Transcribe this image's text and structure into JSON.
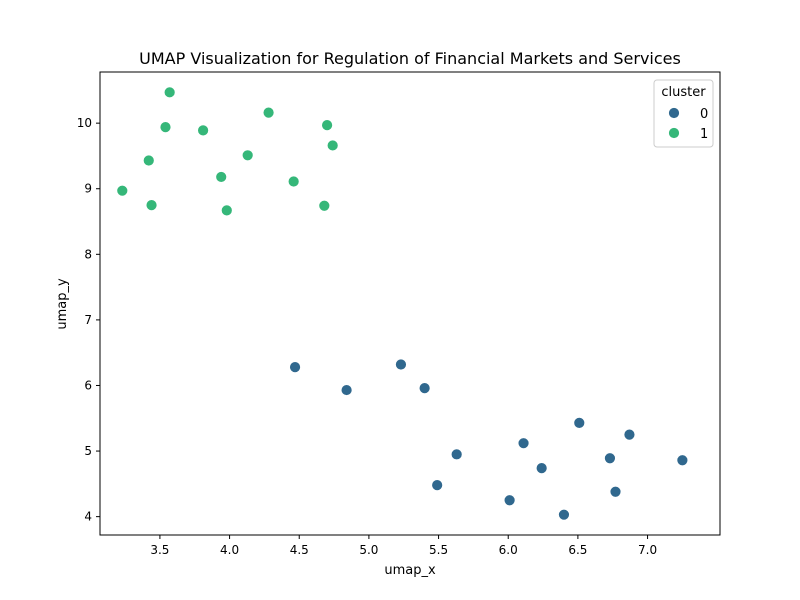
{
  "chart_data": {
    "type": "scatter",
    "title": "UMAP Visualization for Regulation of Financial Markets and Services",
    "xlabel": "umap_x",
    "ylabel": "umap_y",
    "xlim": [
      3.07,
      7.52
    ],
    "ylim": [
      3.72,
      10.78
    ],
    "xticks": [
      3.5,
      4.0,
      4.5,
      5.0,
      5.5,
      6.0,
      6.5,
      7.0
    ],
    "yticks": [
      4,
      5,
      6,
      7,
      8,
      9,
      10
    ],
    "xtick_labels": [
      "3.5",
      "4.0",
      "4.5",
      "5.0",
      "5.5",
      "6.0",
      "6.5",
      "7.0"
    ],
    "ytick_labels": [
      "4",
      "5",
      "6",
      "7",
      "8",
      "9",
      "10"
    ],
    "grid": false,
    "legend": {
      "title": "cluster",
      "placement": "top-right"
    },
    "series": [
      {
        "name": "0",
        "color": "#30688e",
        "points": [
          [
            4.47,
            6.28
          ],
          [
            4.84,
            5.93
          ],
          [
            5.23,
            6.32
          ],
          [
            5.4,
            5.96
          ],
          [
            5.49,
            4.48
          ],
          [
            5.63,
            4.95
          ],
          [
            6.01,
            4.25
          ],
          [
            6.11,
            5.12
          ],
          [
            6.24,
            4.74
          ],
          [
            6.4,
            4.03
          ],
          [
            6.51,
            5.43
          ],
          [
            6.73,
            4.89
          ],
          [
            6.77,
            4.38
          ],
          [
            6.87,
            5.25
          ],
          [
            7.25,
            4.86
          ]
        ]
      },
      {
        "name": "1",
        "color": "#35b779",
        "points": [
          [
            3.23,
            8.97
          ],
          [
            3.42,
            9.43
          ],
          [
            3.44,
            8.75
          ],
          [
            3.54,
            9.94
          ],
          [
            3.57,
            10.47
          ],
          [
            3.81,
            9.89
          ],
          [
            3.94,
            9.18
          ],
          [
            3.98,
            8.67
          ],
          [
            4.13,
            9.51
          ],
          [
            4.28,
            10.16
          ],
          [
            4.46,
            9.11
          ],
          [
            4.68,
            8.74
          ],
          [
            4.7,
            9.97
          ],
          [
            4.74,
            9.66
          ]
        ]
      }
    ]
  }
}
